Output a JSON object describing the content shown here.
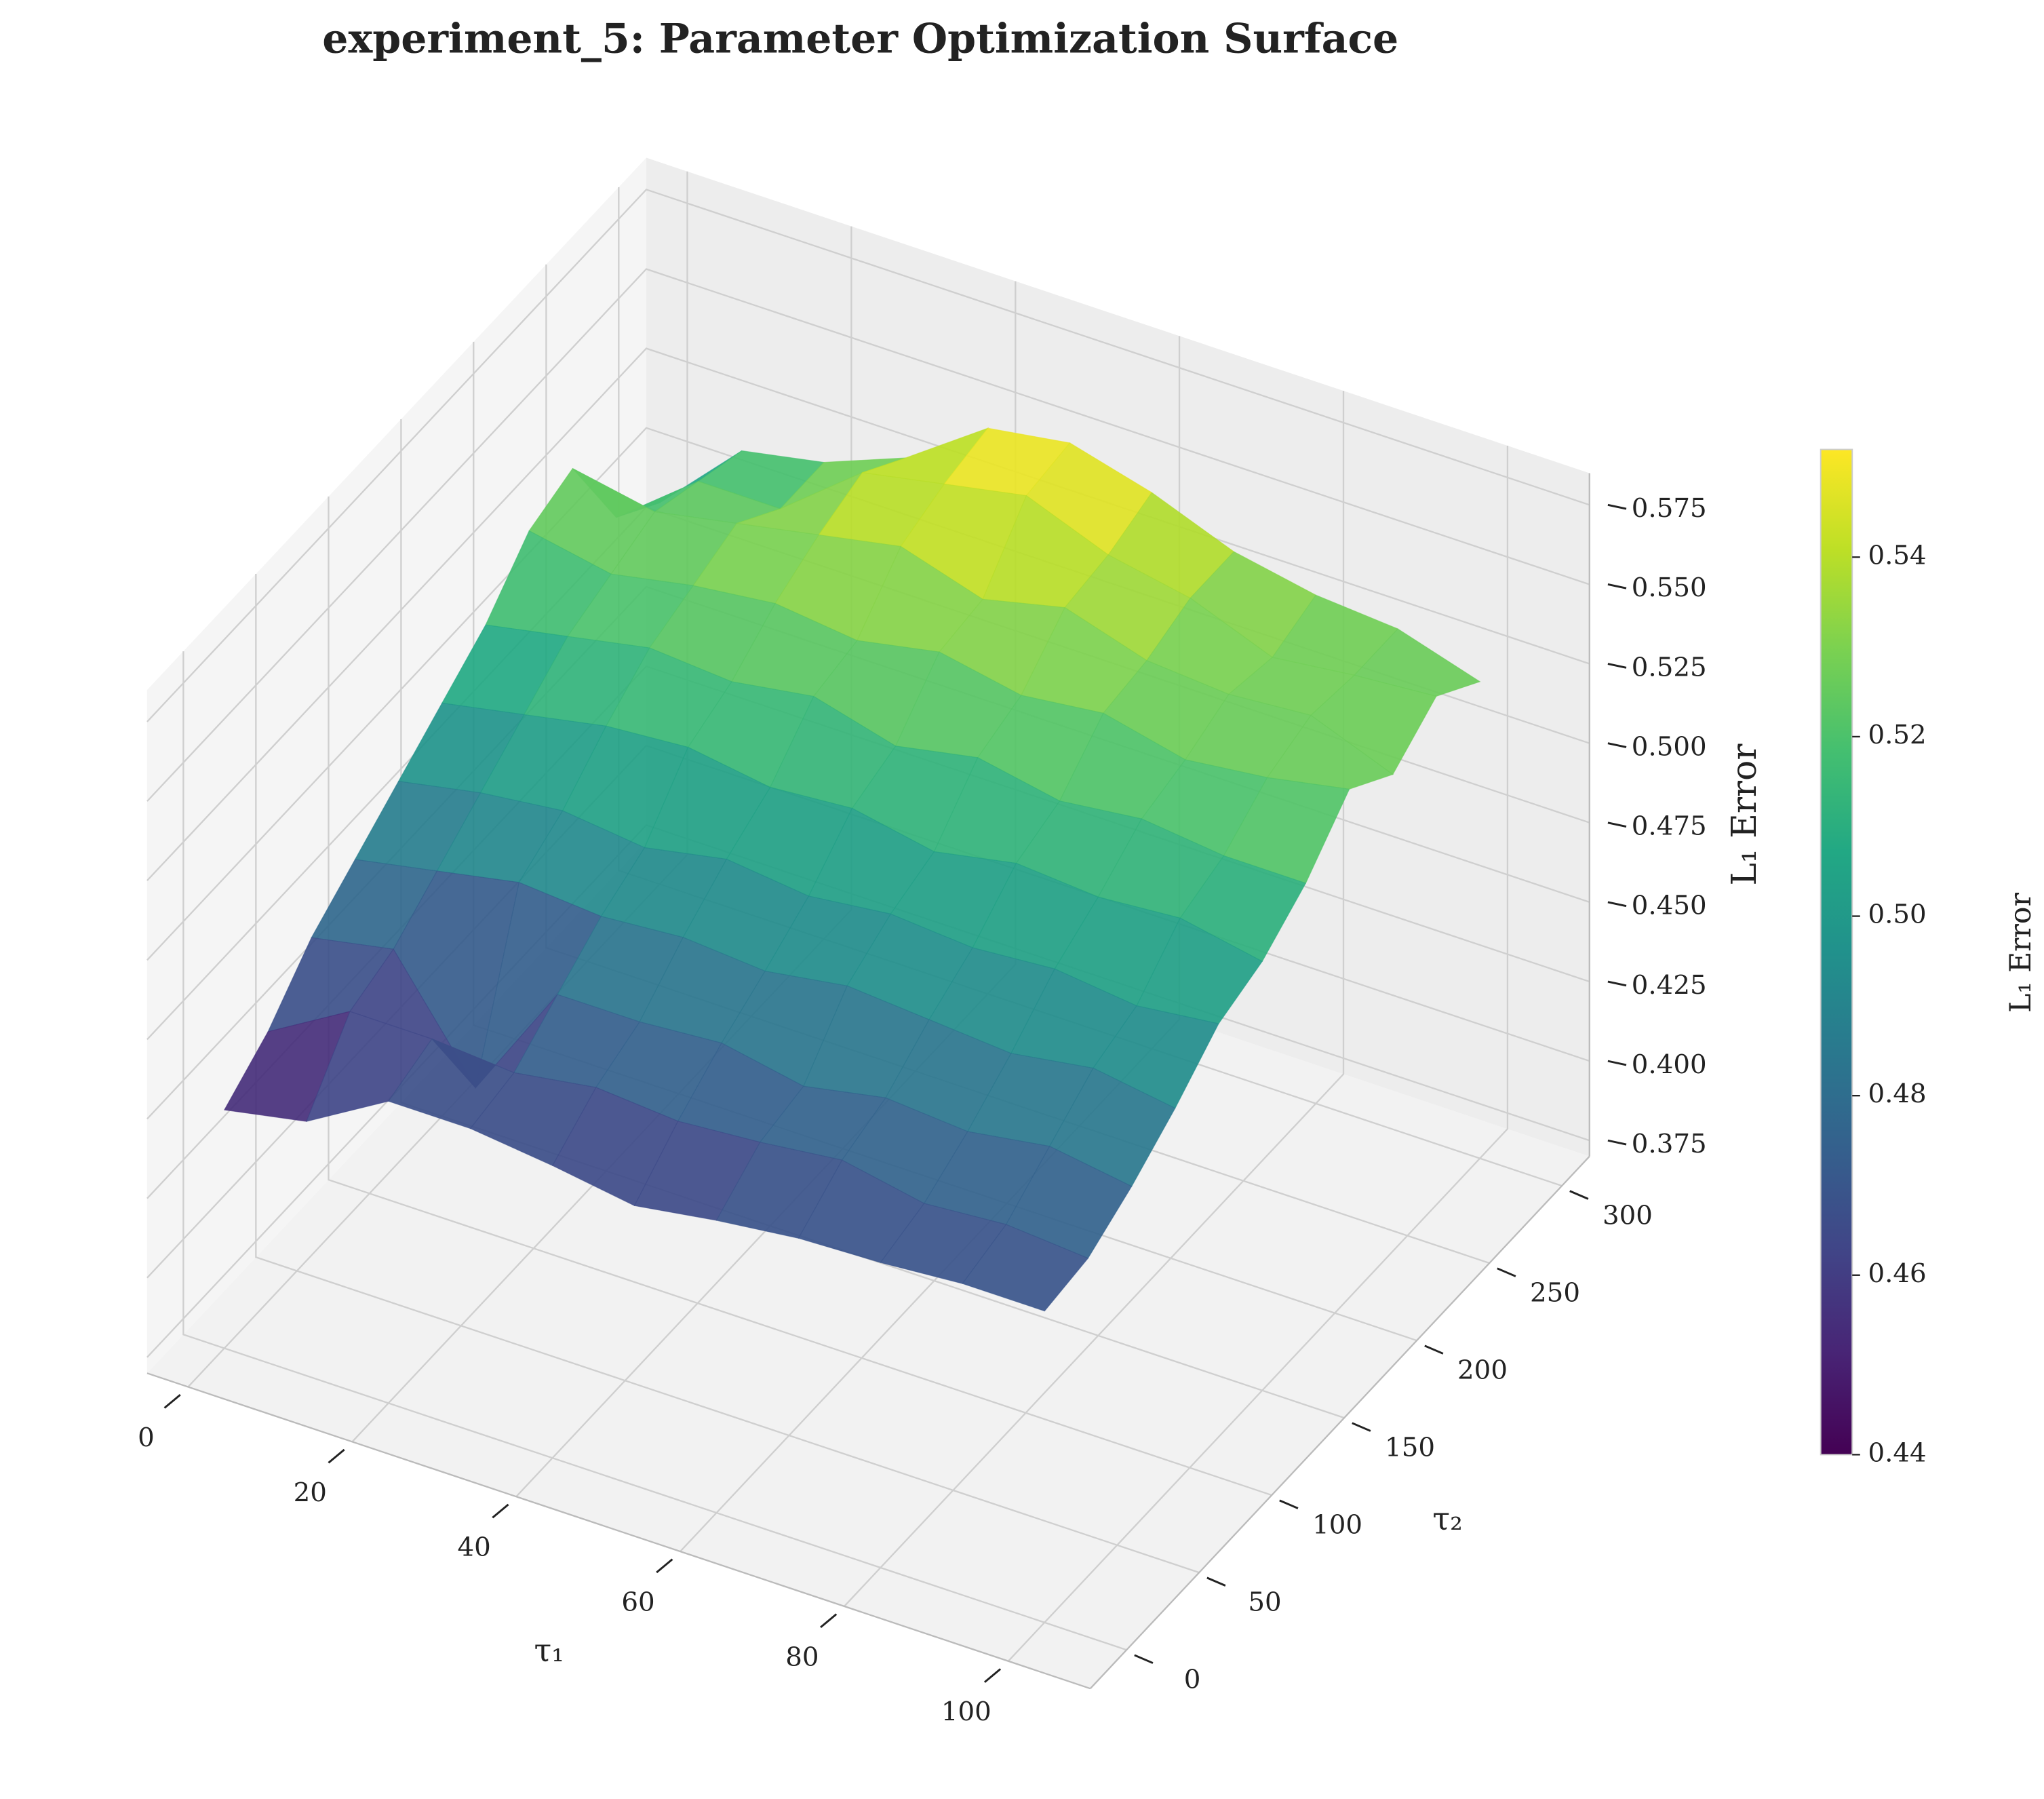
{
  "chart_data": {
    "type": "surface3d",
    "title": "experiment_5: Parameter Optimization Surface",
    "x_label": "τ₁",
    "y_label": "τ₂",
    "z_label": "L₁ Error",
    "colorbar_label": "L₁ Error",
    "colormap": "viridis",
    "x": [
      0,
      10,
      20,
      30,
      40,
      50,
      60,
      70,
      80,
      90,
      100
    ],
    "y": [
      0,
      30,
      60,
      90,
      120,
      150,
      180,
      210,
      240,
      270,
      300
    ],
    "z": [
      [
        0.445,
        0.45,
        0.465,
        0.465,
        0.462,
        0.458,
        0.462,
        0.465,
        0.466,
        0.468,
        0.468
      ],
      [
        0.455,
        0.47,
        0.47,
        0.468,
        0.472,
        0.47,
        0.472,
        0.475,
        0.47,
        0.472,
        0.47
      ],
      [
        0.47,
        0.475,
        0.44,
        0.478,
        0.478,
        0.48,
        0.475,
        0.48,
        0.478,
        0.482,
        0.478
      ],
      [
        0.48,
        0.485,
        0.49,
        0.488,
        0.49,
        0.488,
        0.492,
        0.49,
        0.488,
        0.492,
        0.488
      ],
      [
        0.49,
        0.495,
        0.498,
        0.495,
        0.5,
        0.497,
        0.5,
        0.498,
        0.5,
        0.497,
        0.5
      ],
      [
        0.5,
        0.505,
        0.51,
        0.512,
        0.508,
        0.51,
        0.505,
        0.51,
        0.508,
        0.51,
        0.505
      ],
      [
        0.51,
        0.515,
        0.52,
        0.518,
        0.522,
        0.515,
        0.52,
        0.515,
        0.518,
        0.515,
        0.515
      ],
      [
        0.525,
        0.52,
        0.525,
        0.528,
        0.525,
        0.53,
        0.525,
        0.528,
        0.522,
        0.525,
        0.53
      ],
      [
        0.53,
        0.525,
        0.53,
        0.535,
        0.54,
        0.532,
        0.538,
        0.53,
        0.528,
        0.53,
        0.52
      ],
      [
        0.5,
        0.52,
        0.52,
        0.54,
        0.545,
        0.55,
        0.54,
        0.535,
        0.525,
        0.528,
        0.53
      ],
      [
        0.49,
        0.515,
        0.52,
        0.53,
        0.548,
        0.552,
        0.545,
        0.535,
        0.53,
        0.528,
        0.52
      ]
    ],
    "xlim": [
      -5,
      110
    ],
    "ylim": [
      -25,
      319
    ],
    "zlim": [
      0.37,
      0.585
    ],
    "xticks": [
      0,
      20,
      40,
      60,
      80,
      100
    ],
    "yticks": [
      0,
      50,
      100,
      150,
      200,
      250,
      300
    ],
    "zticks": [
      0.375,
      {
        "value": 0.4,
        "label": "0.400"
      },
      0.425,
      {
        "value": 0.45,
        "label": "0.450"
      },
      0.475,
      {
        "value": 0.5,
        "label": "0.500"
      },
      0.525,
      {
        "value": 0.55,
        "label": "0.550"
      },
      0.575
    ],
    "clim": [
      0.44,
      0.552
    ],
    "cticks": [
      0.44,
      0.46,
      0.48,
      {
        "value": 0.5,
        "label": "0.50"
      },
      0.52,
      0.54
    ],
    "grid": true
  }
}
